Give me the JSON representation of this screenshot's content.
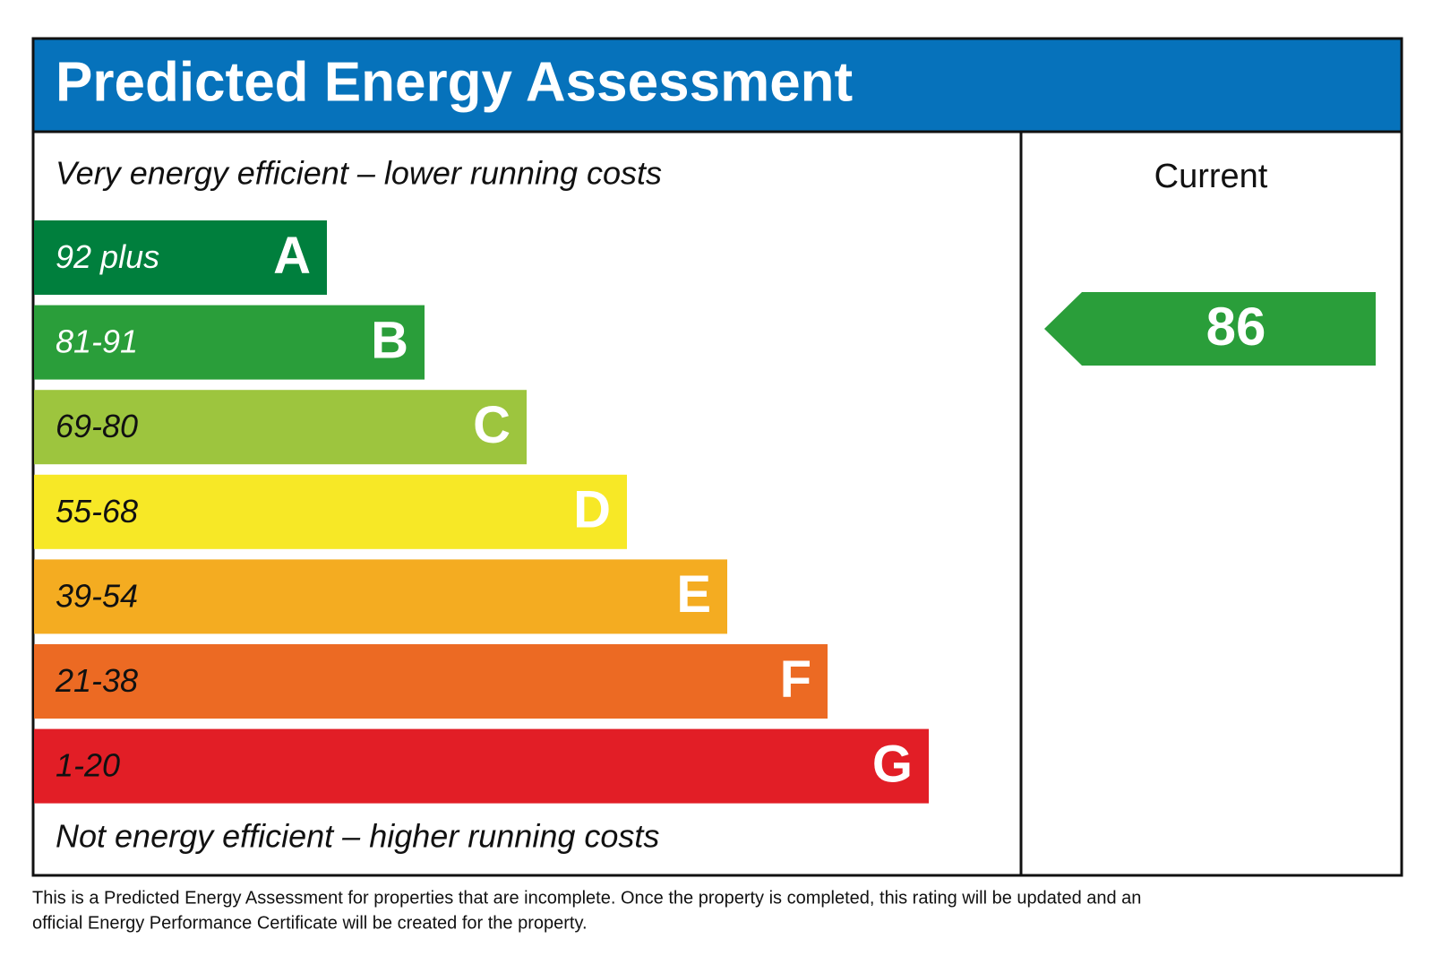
{
  "header": {
    "title": "Predicted Energy Assessment"
  },
  "top_label": "Very energy efficient – lower running costs",
  "bottom_label": "Not energy efficient – higher running costs",
  "bands": [
    {
      "range": "92 plus",
      "letter": "A",
      "color": "#007f3d"
    },
    {
      "range": "81-91",
      "letter": "B",
      "color": "#2a9e3a"
    },
    {
      "range": "69-80",
      "letter": "C",
      "color": "#9dc53e"
    },
    {
      "range": "55-68",
      "letter": "D",
      "color": "#f7e826"
    },
    {
      "range": "39-54",
      "letter": "E",
      "color": "#f4ac21"
    },
    {
      "range": "21-38",
      "letter": "F",
      "color": "#ec6a23"
    },
    {
      "range": "1-20",
      "letter": "G",
      "color": "#e21e26"
    }
  ],
  "current": {
    "label": "Current",
    "value": 86,
    "color": "#2a9e3a"
  },
  "footnote": [
    "This is a Predicted Energy Assessment for properties that are incomplete. Once the property is completed, this rating will be updated and an",
    "official Energy Performance Certificate will be created for the property."
  ]
}
